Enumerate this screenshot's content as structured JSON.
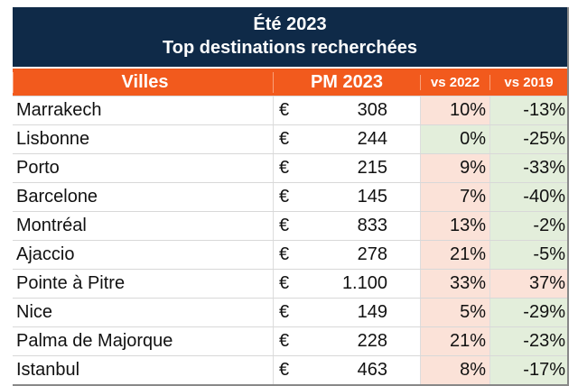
{
  "title": {
    "line1": "Été 2023",
    "line2": "Top destinations recherchées"
  },
  "headers": {
    "city": "Villes",
    "pm": "PM 2023",
    "vs2022": "vs 2022",
    "vs2019": "vs 2019"
  },
  "currency": "€",
  "colors": {
    "title_bg": "#0f2a48",
    "header_bg": "#f25a1d",
    "positive_bg": "#fbe2d8",
    "negative_bg": "#e3eedb"
  },
  "rows": [
    {
      "city": "Marrakech",
      "pm": "308",
      "vs2022": "10%",
      "vs2019": "-13%"
    },
    {
      "city": "Lisbonne",
      "pm": "244",
      "vs2022": "0%",
      "vs2019": "-25%"
    },
    {
      "city": "Porto",
      "pm": "215",
      "vs2022": "9%",
      "vs2019": "-33%"
    },
    {
      "city": "Barcelone",
      "pm": "145",
      "vs2022": "7%",
      "vs2019": "-40%"
    },
    {
      "city": "Montréal",
      "pm": "833",
      "vs2022": "13%",
      "vs2019": "-2%"
    },
    {
      "city": "Ajaccio",
      "pm": "278",
      "vs2022": "21%",
      "vs2019": "-5%"
    },
    {
      "city": "Pointe à Pitre",
      "pm": "1.100",
      "vs2022": "33%",
      "vs2019": "37%"
    },
    {
      "city": "Nice",
      "pm": "149",
      "vs2022": "5%",
      "vs2019": "-29%"
    },
    {
      "city": "Palma de Majorque",
      "pm": "228",
      "vs2022": "21%",
      "vs2019": "-23%"
    },
    {
      "city": "Istanbul",
      "pm": "463",
      "vs2022": "8%",
      "vs2019": "-17%"
    }
  ]
}
